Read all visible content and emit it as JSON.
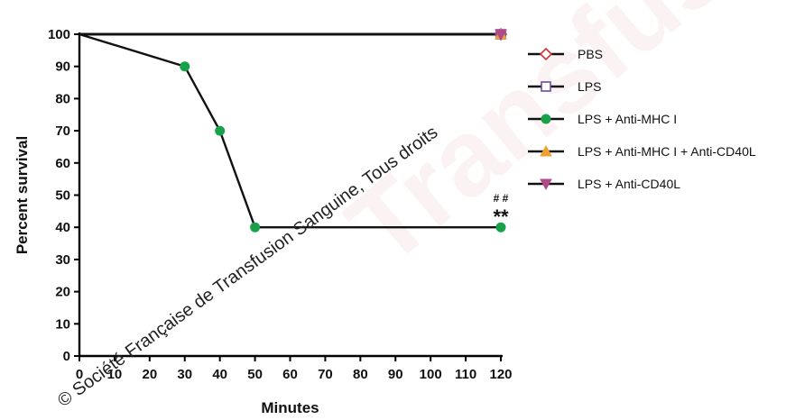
{
  "chart_data": {
    "type": "line",
    "xlabel": "Minutes",
    "ylabel": "Percent survival",
    "xlim": [
      0,
      120
    ],
    "ylim": [
      0,
      100
    ],
    "x_ticks": [
      0,
      10,
      20,
      30,
      40,
      50,
      60,
      70,
      80,
      90,
      100,
      110,
      120
    ],
    "y_ticks": [
      0,
      10,
      20,
      30,
      40,
      50,
      60,
      70,
      80,
      90,
      100
    ],
    "series": [
      {
        "name": "PBS",
        "x": [
          0,
          120
        ],
        "y": [
          100,
          100
        ],
        "color": "#d93030",
        "marker": "diamond-open"
      },
      {
        "name": "LPS",
        "x": [
          0,
          120
        ],
        "y": [
          100,
          100
        ],
        "color": "#6a4fa0",
        "marker": "square-open"
      },
      {
        "name": "LPS + Anti-MHC I",
        "x": [
          0,
          30,
          40,
          50,
          120
        ],
        "y": [
          100,
          90,
          70,
          40,
          40
        ],
        "color": "#19a14a",
        "marker": "circle"
      },
      {
        "name": "LPS + Anti-MHC I + Anti-CD40L",
        "x": [
          0,
          120
        ],
        "y": [
          100,
          100
        ],
        "color": "#f0a030",
        "marker": "triangle-up"
      },
      {
        "name": "LPS + Anti-CD40L",
        "x": [
          0,
          120
        ],
        "y": [
          100,
          100
        ],
        "color": "#b04a8a",
        "marker": "triangle-down"
      }
    ],
    "annotations": [
      {
        "text": "# #",
        "x": 120,
        "y": 40
      },
      {
        "text": "**",
        "x": 120,
        "y": 40
      }
    ],
    "legend_position": "right",
    "grid": false
  },
  "watermark": {
    "text": "© Société Française de Transfusion Sanguine, Tous droits"
  }
}
